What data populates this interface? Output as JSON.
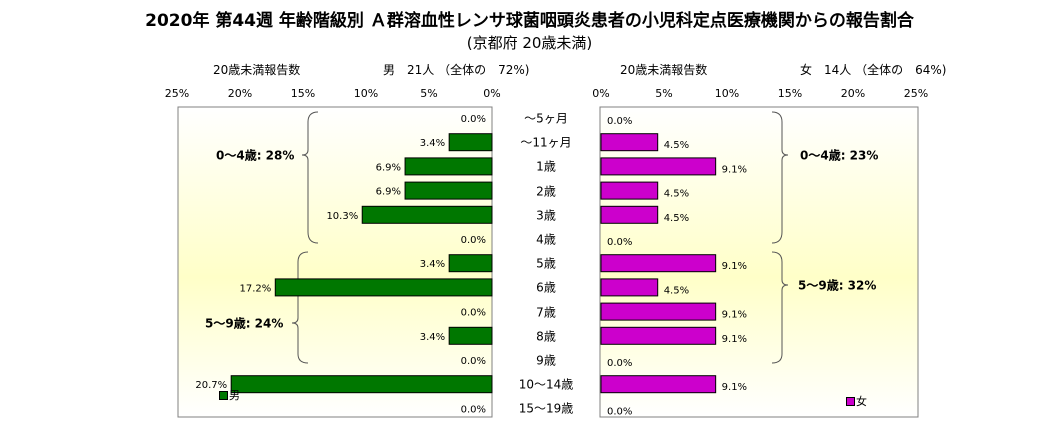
{
  "title": "2020年 第44週 年齢階級別 Ａ群溶血性レンサ球菌咽頭炎患者の小児科定点医療機関からの報告割合",
  "subtitle": "(京都府 20歳未満)",
  "male": {
    "header_left": "20歳未満報告数",
    "header_right": "男　21人 （全体の　72%)"
  },
  "female": {
    "header_left": "20歳未満報告数",
    "header_right": "女　14人 （全体の　64%)"
  },
  "male_ticks": [
    "25%",
    "20%",
    "15%",
    "10%",
    "5%",
    "0%"
  ],
  "female_ticks": [
    "0%",
    "5%",
    "10%",
    "15%",
    "20%",
    "25%"
  ],
  "groups": {
    "male_0_4": "0～4歳: 28%",
    "male_5_9": "5～9歳: 24%",
    "female_0_4": "0～4歳: 23%",
    "female_5_9": "5～9歳: 32%"
  },
  "legend": {
    "male": "男",
    "female": "女"
  },
  "colors": {
    "male": "#007700",
    "female": "#cc00cc",
    "bg_edge": "#ffffff",
    "bg_center": "#ffffc8"
  },
  "chart_data": {
    "type": "bar",
    "orientation": "horizontal",
    "layout": "population-pyramid",
    "categories": [
      "～5ヶ月",
      "～11ヶ月",
      "1歳",
      "2歳",
      "3歳",
      "4歳",
      "5歳",
      "6歳",
      "7歳",
      "8歳",
      "9歳",
      "10～14歳",
      "15～19歳"
    ],
    "series": [
      {
        "name": "男",
        "values": [
          0,
          3.4,
          6.9,
          6.9,
          10.3,
          0,
          3.4,
          17.2,
          0,
          3.4,
          0,
          20.7,
          0
        ],
        "labels": [
          "0.0%",
          "3.4%",
          "6.9%",
          "6.9%",
          "10.3%",
          "0.0%",
          "3.4%",
          "17.2%",
          "0.0%",
          "3.4%",
          "0.0%",
          "20.7%",
          "0.0%"
        ]
      },
      {
        "name": "女",
        "values": [
          0,
          4.5,
          9.1,
          4.5,
          4.5,
          0,
          9.1,
          4.5,
          9.1,
          9.1,
          0,
          9.1,
          0
        ],
        "labels": [
          "0.0%",
          "4.5%",
          "9.1%",
          "4.5%",
          "4.5%",
          "0.0%",
          "9.1%",
          "4.5%",
          "9.1%",
          "9.1%",
          "0.0%",
          "9.1%",
          "0.0%"
        ]
      }
    ],
    "xlim": [
      0,
      25
    ],
    "grid": true,
    "legend_position": "bottom"
  }
}
